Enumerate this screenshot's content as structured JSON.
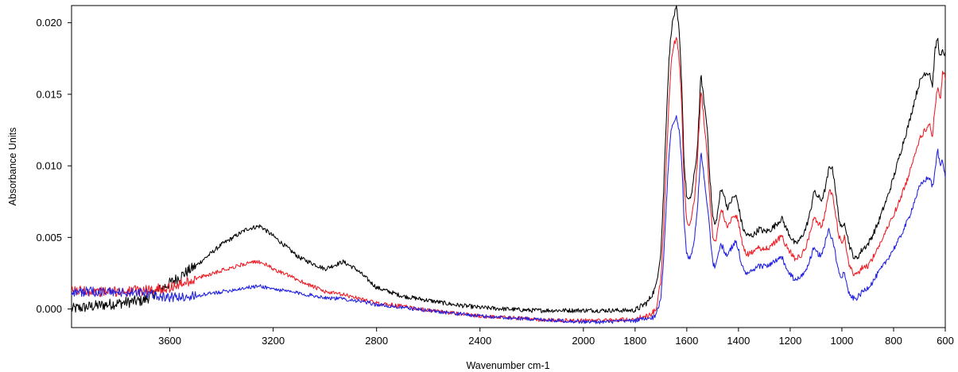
{
  "chart_data": {
    "type": "line",
    "title": "",
    "xlabel": "Wavenumber cm-1",
    "ylabel": "Absorbance Units",
    "xlim": [
      3980,
      600
    ],
    "ylim": [
      -0.0013,
      0.0212
    ],
    "x_reversed": true,
    "grid": false,
    "legend": "none",
    "xticks": [
      3600,
      3200,
      2800,
      2400,
      2000,
      1800,
      1600,
      1400,
      1200,
      1000,
      800,
      600
    ],
    "xtick_labels": [
      "3600",
      "3200",
      "2800",
      "2400",
      "2000",
      "1800",
      "1600",
      "1400",
      "1200",
      "1000",
      "800",
      "600"
    ],
    "yticks": [
      0.0,
      0.005,
      0.01,
      0.015,
      0.02
    ],
    "ytick_labels": [
      "0.000",
      "0.005",
      "0.010",
      "0.015",
      "0.020"
    ],
    "series": [
      {
        "color": "#000000",
        "noise": 0.00022,
        "x": [
          3980,
          3850,
          3700,
          3600,
          3500,
          3400,
          3300,
          3250,
          3200,
          3100,
          3000,
          2930,
          2880,
          2800,
          2700,
          2600,
          2500,
          2400,
          2300,
          2200,
          2100,
          2000,
          1900,
          1800,
          1750,
          1720,
          1700,
          1690,
          1680,
          1670,
          1660,
          1650,
          1640,
          1630,
          1620,
          1610,
          1600,
          1590,
          1580,
          1570,
          1560,
          1550,
          1545,
          1540,
          1530,
          1520,
          1510,
          1500,
          1490,
          1480,
          1470,
          1460,
          1450,
          1440,
          1430,
          1420,
          1410,
          1400,
          1390,
          1380,
          1370,
          1360,
          1340,
          1320,
          1300,
          1280,
          1260,
          1240,
          1230,
          1220,
          1200,
          1180,
          1160,
          1140,
          1120,
          1110,
          1100,
          1090,
          1080,
          1070,
          1060,
          1050,
          1040,
          1030,
          1020,
          1010,
          1000,
          990,
          980,
          970,
          960,
          950,
          940,
          930,
          920,
          900,
          880,
          860,
          840,
          820,
          800,
          780,
          760,
          740,
          720,
          700,
          680,
          660,
          650,
          640,
          630,
          620,
          610,
          600
        ],
        "y": [
          0.0,
          0.0003,
          0.0006,
          0.0018,
          0.003,
          0.0045,
          0.0056,
          0.0058,
          0.0051,
          0.0036,
          0.0028,
          0.0033,
          0.0028,
          0.0015,
          0.0009,
          0.0006,
          0.0003,
          0.0001,
          0.0,
          -0.0001,
          -0.0001,
          -0.0001,
          -0.0001,
          -0.0001,
          0.0005,
          0.0015,
          0.004,
          0.008,
          0.013,
          0.017,
          0.0195,
          0.0205,
          0.021,
          0.0195,
          0.016,
          0.01,
          0.0078,
          0.0075,
          0.0082,
          0.0095,
          0.011,
          0.0145,
          0.0165,
          0.0155,
          0.014,
          0.0125,
          0.009,
          0.0065,
          0.0058,
          0.0068,
          0.0082,
          0.0083,
          0.0075,
          0.007,
          0.0075,
          0.0078,
          0.0079,
          0.0072,
          0.0062,
          0.0055,
          0.0052,
          0.0051,
          0.0052,
          0.0056,
          0.0054,
          0.0055,
          0.0058,
          0.0062,
          0.0063,
          0.0058,
          0.0051,
          0.0045,
          0.0049,
          0.0056,
          0.0069,
          0.0082,
          0.008,
          0.0078,
          0.0076,
          0.008,
          0.0088,
          0.0098,
          0.01,
          0.0092,
          0.0075,
          0.0062,
          0.0055,
          0.0062,
          0.0052,
          0.0044,
          0.0039,
          0.0035,
          0.0036,
          0.0039,
          0.0042,
          0.0045,
          0.0052,
          0.006,
          0.007,
          0.008,
          0.0092,
          0.0105,
          0.0118,
          0.013,
          0.0145,
          0.0158,
          0.0165,
          0.0165,
          0.0155,
          0.018,
          0.019,
          0.0175,
          0.018,
          0.0178
        ]
      },
      {
        "color": "#ee1c24",
        "noise": 0.0002,
        "x": [
          3980,
          3850,
          3700,
          3600,
          3500,
          3400,
          3300,
          3250,
          3200,
          3100,
          3000,
          2930,
          2880,
          2800,
          2700,
          2600,
          2500,
          2400,
          2300,
          2200,
          2100,
          2000,
          1900,
          1800,
          1750,
          1720,
          1700,
          1690,
          1680,
          1670,
          1660,
          1650,
          1640,
          1630,
          1620,
          1610,
          1600,
          1590,
          1580,
          1570,
          1560,
          1550,
          1545,
          1540,
          1530,
          1520,
          1510,
          1500,
          1490,
          1480,
          1470,
          1460,
          1450,
          1440,
          1430,
          1420,
          1410,
          1400,
          1390,
          1380,
          1370,
          1360,
          1340,
          1320,
          1300,
          1280,
          1260,
          1240,
          1230,
          1220,
          1200,
          1180,
          1160,
          1140,
          1120,
          1110,
          1100,
          1090,
          1080,
          1070,
          1060,
          1050,
          1040,
          1030,
          1020,
          1010,
          1000,
          990,
          980,
          970,
          960,
          950,
          940,
          930,
          920,
          900,
          880,
          860,
          840,
          820,
          800,
          780,
          760,
          740,
          720,
          700,
          680,
          660,
          650,
          640,
          630,
          620,
          610,
          600
        ],
        "y": [
          0.0013,
          0.0012,
          0.0013,
          0.0015,
          0.0021,
          0.0027,
          0.0032,
          0.0033,
          0.0028,
          0.002,
          0.0012,
          0.001,
          0.0008,
          0.0004,
          0.0002,
          -0.0001,
          -0.0003,
          -0.0005,
          -0.0006,
          -0.0007,
          -0.0008,
          -0.0008,
          -0.0008,
          -0.0007,
          -0.0005,
          -0.0001,
          0.002,
          0.0055,
          0.01,
          0.014,
          0.0175,
          0.0185,
          0.019,
          0.0175,
          0.0145,
          0.0085,
          0.0062,
          0.0058,
          0.0065,
          0.0078,
          0.01,
          0.0135,
          0.0155,
          0.0145,
          0.0125,
          0.0105,
          0.0075,
          0.0052,
          0.0046,
          0.0055,
          0.0068,
          0.0067,
          0.006,
          0.0058,
          0.0062,
          0.0064,
          0.0066,
          0.006,
          0.005,
          0.0042,
          0.0039,
          0.0038,
          0.004,
          0.0043,
          0.0042,
          0.0043,
          0.0046,
          0.005,
          0.0052,
          0.0045,
          0.004,
          0.0035,
          0.0037,
          0.0043,
          0.0055,
          0.0064,
          0.0062,
          0.006,
          0.0058,
          0.0062,
          0.0072,
          0.0082,
          0.0081,
          0.0074,
          0.006,
          0.005,
          0.0045,
          0.005,
          0.0038,
          0.003,
          0.0026,
          0.0024,
          0.0025,
          0.0027,
          0.0029,
          0.003,
          0.0036,
          0.0043,
          0.005,
          0.0058,
          0.0066,
          0.0074,
          0.0084,
          0.0094,
          0.0108,
          0.0118,
          0.0125,
          0.0128,
          0.012,
          0.014,
          0.0155,
          0.0145,
          0.0165,
          0.0162
        ]
      },
      {
        "color": "#2020e0",
        "noise": 0.00019,
        "x": [
          3980,
          3850,
          3700,
          3600,
          3500,
          3400,
          3300,
          3250,
          3200,
          3100,
          3000,
          2930,
          2880,
          2800,
          2700,
          2600,
          2500,
          2400,
          2300,
          2200,
          2100,
          2000,
          1900,
          1800,
          1750,
          1720,
          1700,
          1690,
          1680,
          1670,
          1660,
          1650,
          1640,
          1630,
          1620,
          1610,
          1600,
          1590,
          1580,
          1570,
          1560,
          1550,
          1545,
          1540,
          1530,
          1520,
          1510,
          1500,
          1490,
          1480,
          1470,
          1460,
          1450,
          1440,
          1430,
          1420,
          1410,
          1400,
          1390,
          1380,
          1370,
          1360,
          1340,
          1320,
          1300,
          1280,
          1260,
          1240,
          1230,
          1220,
          1200,
          1180,
          1160,
          1140,
          1120,
          1110,
          1100,
          1090,
          1080,
          1070,
          1060,
          1050,
          1040,
          1030,
          1020,
          1010,
          1000,
          990,
          980,
          970,
          960,
          950,
          940,
          930,
          920,
          900,
          880,
          860,
          840,
          820,
          800,
          780,
          760,
          740,
          720,
          700,
          680,
          660,
          650,
          640,
          630,
          620,
          610,
          600
        ],
        "y": [
          0.0012,
          0.0012,
          0.0011,
          0.0008,
          0.0009,
          0.0012,
          0.0015,
          0.0016,
          0.0014,
          0.0011,
          0.0008,
          0.0007,
          0.0006,
          0.0003,
          0.0001,
          -0.0001,
          -0.0003,
          -0.0005,
          -0.0006,
          -0.0007,
          -0.0008,
          -0.0009,
          -0.0009,
          -0.0008,
          -0.0007,
          -0.0005,
          0.0008,
          0.0035,
          0.007,
          0.0105,
          0.0125,
          0.0132,
          0.0135,
          0.0125,
          0.0105,
          0.006,
          0.0038,
          0.0035,
          0.004,
          0.005,
          0.0068,
          0.0095,
          0.011,
          0.0102,
          0.0088,
          0.0072,
          0.0052,
          0.0033,
          0.0028,
          0.0036,
          0.0045,
          0.0043,
          0.0038,
          0.0038,
          0.0042,
          0.0045,
          0.0047,
          0.0042,
          0.0032,
          0.0027,
          0.0025,
          0.0025,
          0.0027,
          0.003,
          0.003,
          0.0031,
          0.0033,
          0.0035,
          0.0036,
          0.003,
          0.0024,
          0.002,
          0.0022,
          0.0027,
          0.0036,
          0.0042,
          0.004,
          0.0038,
          0.0038,
          0.0043,
          0.005,
          0.0055,
          0.005,
          0.0044,
          0.0032,
          0.0025,
          0.0023,
          0.0027,
          0.0015,
          0.001,
          0.0008,
          0.0007,
          0.0008,
          0.001,
          0.0012,
          0.0015,
          0.0019,
          0.0025,
          0.003,
          0.0036,
          0.0042,
          0.0048,
          0.0056,
          0.0064,
          0.0075,
          0.0085,
          0.009,
          0.0092,
          0.0085,
          0.0095,
          0.0112,
          0.01,
          0.0105,
          0.0092
        ]
      }
    ]
  }
}
